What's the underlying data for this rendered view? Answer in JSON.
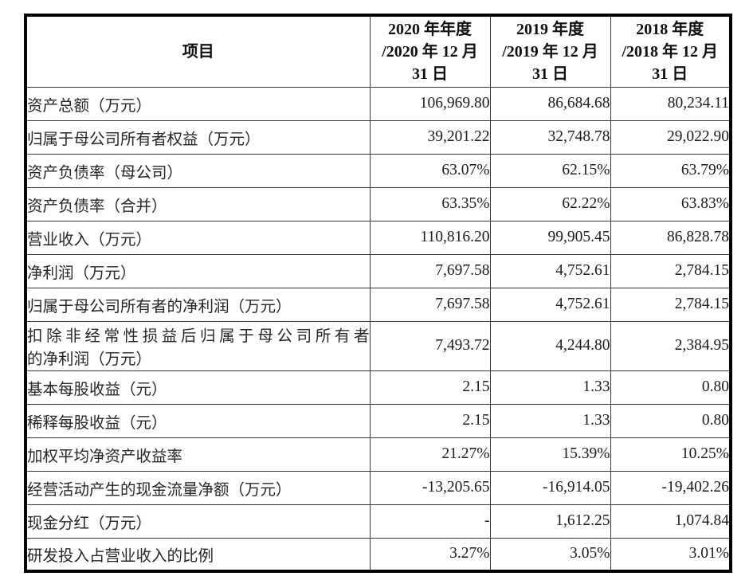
{
  "table": {
    "header": {
      "item": "项目",
      "col2020": "2020 年年度\n/2020 年 12 月\n31 日",
      "col2019": "2019 年度\n/2019 年 12 月\n31 日",
      "col2018": "2018 年度\n/2018 年 12 月\n31 日"
    },
    "rows": [
      {
        "label": "资产总额（万元）",
        "values": [
          "106,969.80",
          "86,684.68",
          "80,234.11"
        ]
      },
      {
        "label": "归属于母公司所有者权益（万元）",
        "values": [
          "39,201.22",
          "32,748.78",
          "29,022.90"
        ]
      },
      {
        "label": "资产负债率（母公司）",
        "values": [
          "63.07%",
          "62.15%",
          "63.79%"
        ]
      },
      {
        "label": "资产负债率（合并）",
        "values": [
          "63.35%",
          "62.22%",
          "63.83%"
        ]
      },
      {
        "label": "营业收入（万元）",
        "values": [
          "110,816.20",
          "99,905.45",
          "86,828.78"
        ]
      },
      {
        "label": "净利润（万元）",
        "values": [
          "7,697.58",
          "4,752.61",
          "2,784.15"
        ]
      },
      {
        "label": "归属于母公司所有者的净利润（万元）",
        "values": [
          "7,697.58",
          "4,752.61",
          "2,784.15"
        ]
      },
      {
        "label": "扣除非经常性损益后归属于母公司所有者的净利润（万元）",
        "label_lines": [
          "扣除非经常性损益后归属于母公司所有者",
          "的净利润（万元）"
        ],
        "values": [
          "7,493.72",
          "4,244.80",
          "2,384.95"
        ]
      },
      {
        "label": "基本每股收益（元）",
        "values": [
          "2.15",
          "1.33",
          "0.80"
        ]
      },
      {
        "label": "稀释每股收益（元）",
        "values": [
          "2.15",
          "1.33",
          "0.80"
        ]
      },
      {
        "label": "加权平均净资产收益率",
        "values": [
          "21.27%",
          "15.39%",
          "10.25%"
        ]
      },
      {
        "label": "经营活动产生的现金流量净额（万元）",
        "values": [
          "-13,205.65",
          "-16,914.05",
          "-19,402.26"
        ]
      },
      {
        "label": "现金分红（万元）",
        "values": [
          "-",
          "1,612.25",
          "1,074.84"
        ]
      },
      {
        "label": "研发投入占营业收入的比例",
        "values": [
          "3.27%",
          "3.05%",
          "3.01%"
        ]
      }
    ],
    "colors": {
      "border_outer": "#000000",
      "border_inner": "#383838",
      "text": "#1c1c1c",
      "background": "#ffffff"
    }
  }
}
